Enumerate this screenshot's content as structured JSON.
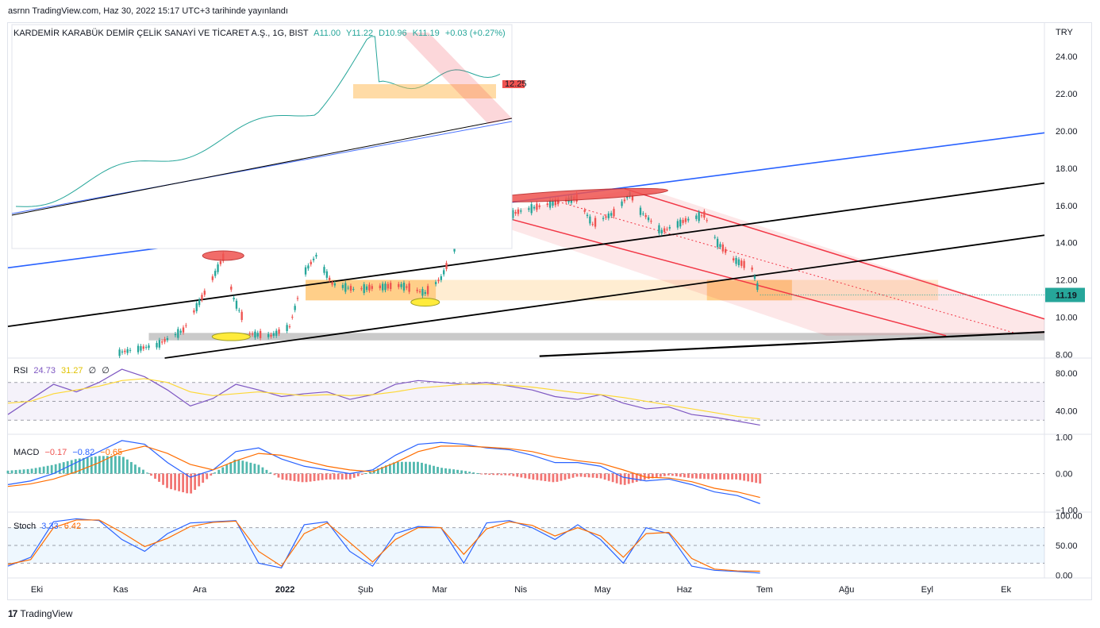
{
  "attribution": "asrnn TradingView.com, Haz 30, 2022 15:17 UTC+3 tarihinde yayınlandı",
  "footer_brand": "TradingView",
  "currency": "TRY",
  "colors": {
    "up": "#26a69a",
    "down": "#ef5350",
    "rsi_line": "#7e57c2",
    "rsi_ma": "#fdd835",
    "macd_line": "#2962ff",
    "signal_line": "#ff6d00",
    "stoch_k": "#2962ff",
    "stoch_d": "#ff6d00",
    "channel_red": "#f23645",
    "zone_orange": "#ffb74d",
    "trend_blue": "#2962ff"
  },
  "legend": {
    "title": "KARDEMİR KARABÜK DEMİR ÇELİK SANAYİ VE TİCARET A.Ş., 1G, BIST",
    "open": "A11.00",
    "high": "Y11.22",
    "low": "D10.96",
    "close": "K11.19",
    "change": "+0.03 (+0.27%)"
  },
  "rsi_legend": {
    "name": "RSI",
    "v1": "24.73",
    "v2": "31.27",
    "v3": "∅",
    "v4": "∅"
  },
  "macd_legend": {
    "name": "MACD",
    "v1": "−0.17",
    "v2": "−0.82",
    "v3": "−0.65"
  },
  "stoch_legend": {
    "name": "Stoch",
    "v1": "3.33",
    "v2": "6.42"
  },
  "last_price_label": "11.19",
  "inset_price_label": "12.25",
  "chart_data": [
    {
      "type": "candlestick",
      "title": "KARDEMİR KARABÜK DEMİR ÇELİK SANAYİ VE TİCARET A.Ş., 1G, BIST",
      "y_ticks": [
        "24.00",
        "22.00",
        "20.00",
        "18.00",
        "16.00",
        "14.00",
        "12.00",
        "10.00",
        "8.00"
      ],
      "ylim": [
        7.8,
        25.8
      ],
      "x_ticks": [
        "Eki",
        "Kas",
        "Ara",
        "2022",
        "Şub",
        "Mar",
        "Nis",
        "May",
        "Haz",
        "Tem",
        "Ağu",
        "Eyl",
        "Ek"
      ],
      "close_path": [
        [
          "2021-11-01",
          8.1
        ],
        [
          "2021-11-15",
          8.5
        ],
        [
          "2021-11-25",
          9.3
        ],
        [
          "2021-12-05",
          11.8
        ],
        [
          "2021-12-10",
          13.2
        ],
        [
          "2021-12-14",
          11.0
        ],
        [
          "2021-12-20",
          9.1
        ],
        [
          "2021-12-28",
          9.0
        ],
        [
          "2022-01-04",
          9.5
        ],
        [
          "2022-01-10",
          12.5
        ],
        [
          "2022-01-14",
          13.3
        ],
        [
          "2022-01-20",
          11.8
        ],
        [
          "2022-01-28",
          11.5
        ],
        [
          "2022-02-05",
          11.6
        ],
        [
          "2022-02-15",
          11.7
        ],
        [
          "2022-02-24",
          11.3
        ],
        [
          "2022-03-02",
          12.1
        ],
        [
          "2022-03-08",
          14.0
        ],
        [
          "2022-03-14",
          15.4
        ],
        [
          "2022-03-22",
          15.2
        ],
        [
          "2022-04-01",
          15.7
        ],
        [
          "2022-04-12",
          16.1
        ],
        [
          "2022-04-22",
          16.4
        ],
        [
          "2022-04-28",
          15.0
        ],
        [
          "2022-05-06",
          15.6
        ],
        [
          "2022-05-12",
          16.6
        ],
        [
          "2022-05-16",
          15.7
        ],
        [
          "2022-05-24",
          14.6
        ],
        [
          "2022-06-02",
          15.2
        ],
        [
          "2022-06-09",
          15.5
        ],
        [
          "2022-06-14",
          14.0
        ],
        [
          "2022-06-20",
          13.1
        ],
        [
          "2022-06-27",
          12.6
        ],
        [
          "2022-06-30",
          11.19
        ]
      ],
      "annotations": {
        "last_price": 11.19
      }
    },
    {
      "type": "line",
      "name": "RSI",
      "y_ticks": [
        "80.00",
        "40.00"
      ],
      "ylim": [
        15,
        95
      ],
      "series": [
        {
          "values": [
            36,
            52,
            68,
            60,
            70,
            84,
            76,
            62,
            45,
            53,
            68,
            62,
            55,
            58,
            60,
            52,
            57,
            68,
            72,
            70,
            68,
            70,
            66,
            62,
            55,
            52,
            57,
            48,
            42,
            44,
            36,
            33,
            29,
            24.73
          ]
        },
        {
          "values": [
            48,
            50,
            58,
            62,
            66,
            72,
            74,
            70,
            60,
            56,
            58,
            60,
            58,
            56,
            57,
            56,
            57,
            60,
            64,
            66,
            68,
            68,
            67,
            65,
            62,
            59,
            57,
            54,
            50,
            46,
            42,
            38,
            34,
            31.27
          ]
        }
      ]
    },
    {
      "type": "line",
      "name": "MACD",
      "y_ticks": [
        "1.00",
        "0.00",
        "−1.00"
      ],
      "ylim": [
        -1.05,
        1.05
      ],
      "series": [
        {
          "values": [
            -0.3,
            -0.2,
            0.0,
            0.3,
            0.6,
            0.9,
            0.8,
            0.3,
            -0.1,
            0.1,
            0.6,
            0.7,
            0.4,
            0.2,
            0.1,
            0.0,
            0.1,
            0.5,
            0.8,
            0.85,
            0.8,
            0.7,
            0.65,
            0.5,
            0.3,
            0.3,
            0.2,
            -0.1,
            -0.2,
            -0.15,
            -0.3,
            -0.5,
            -0.6,
            -0.82
          ]
        },
        {
          "values": [
            -0.35,
            -0.28,
            -0.15,
            0.05,
            0.3,
            0.6,
            0.75,
            0.55,
            0.25,
            0.1,
            0.35,
            0.55,
            0.5,
            0.35,
            0.2,
            0.1,
            0.05,
            0.3,
            0.6,
            0.75,
            0.75,
            0.72,
            0.68,
            0.6,
            0.45,
            0.35,
            0.28,
            0.1,
            -0.1,
            -0.12,
            -0.22,
            -0.4,
            -0.5,
            -0.65
          ]
        }
      ]
    },
    {
      "type": "line",
      "name": "Stoch",
      "y_ticks": [
        "100.00",
        "50.00",
        "0.00"
      ],
      "ylim": [
        -5,
        105
      ],
      "series": [
        {
          "values": [
            15,
            30,
            90,
            95,
            92,
            60,
            40,
            70,
            88,
            90,
            92,
            20,
            12,
            85,
            90,
            40,
            15,
            70,
            82,
            80,
            20,
            88,
            92,
            80,
            60,
            85,
            60,
            20,
            80,
            70,
            15,
            8,
            6,
            3.33
          ]
        },
        {
          "values": [
            18,
            26,
            80,
            93,
            93,
            72,
            48,
            62,
            82,
            89,
            91,
            40,
            15,
            70,
            88,
            55,
            22,
            60,
            80,
            80,
            35,
            78,
            90,
            84,
            66,
            80,
            66,
            30,
            70,
            72,
            28,
            10,
            7,
            6.42
          ]
        }
      ]
    }
  ]
}
